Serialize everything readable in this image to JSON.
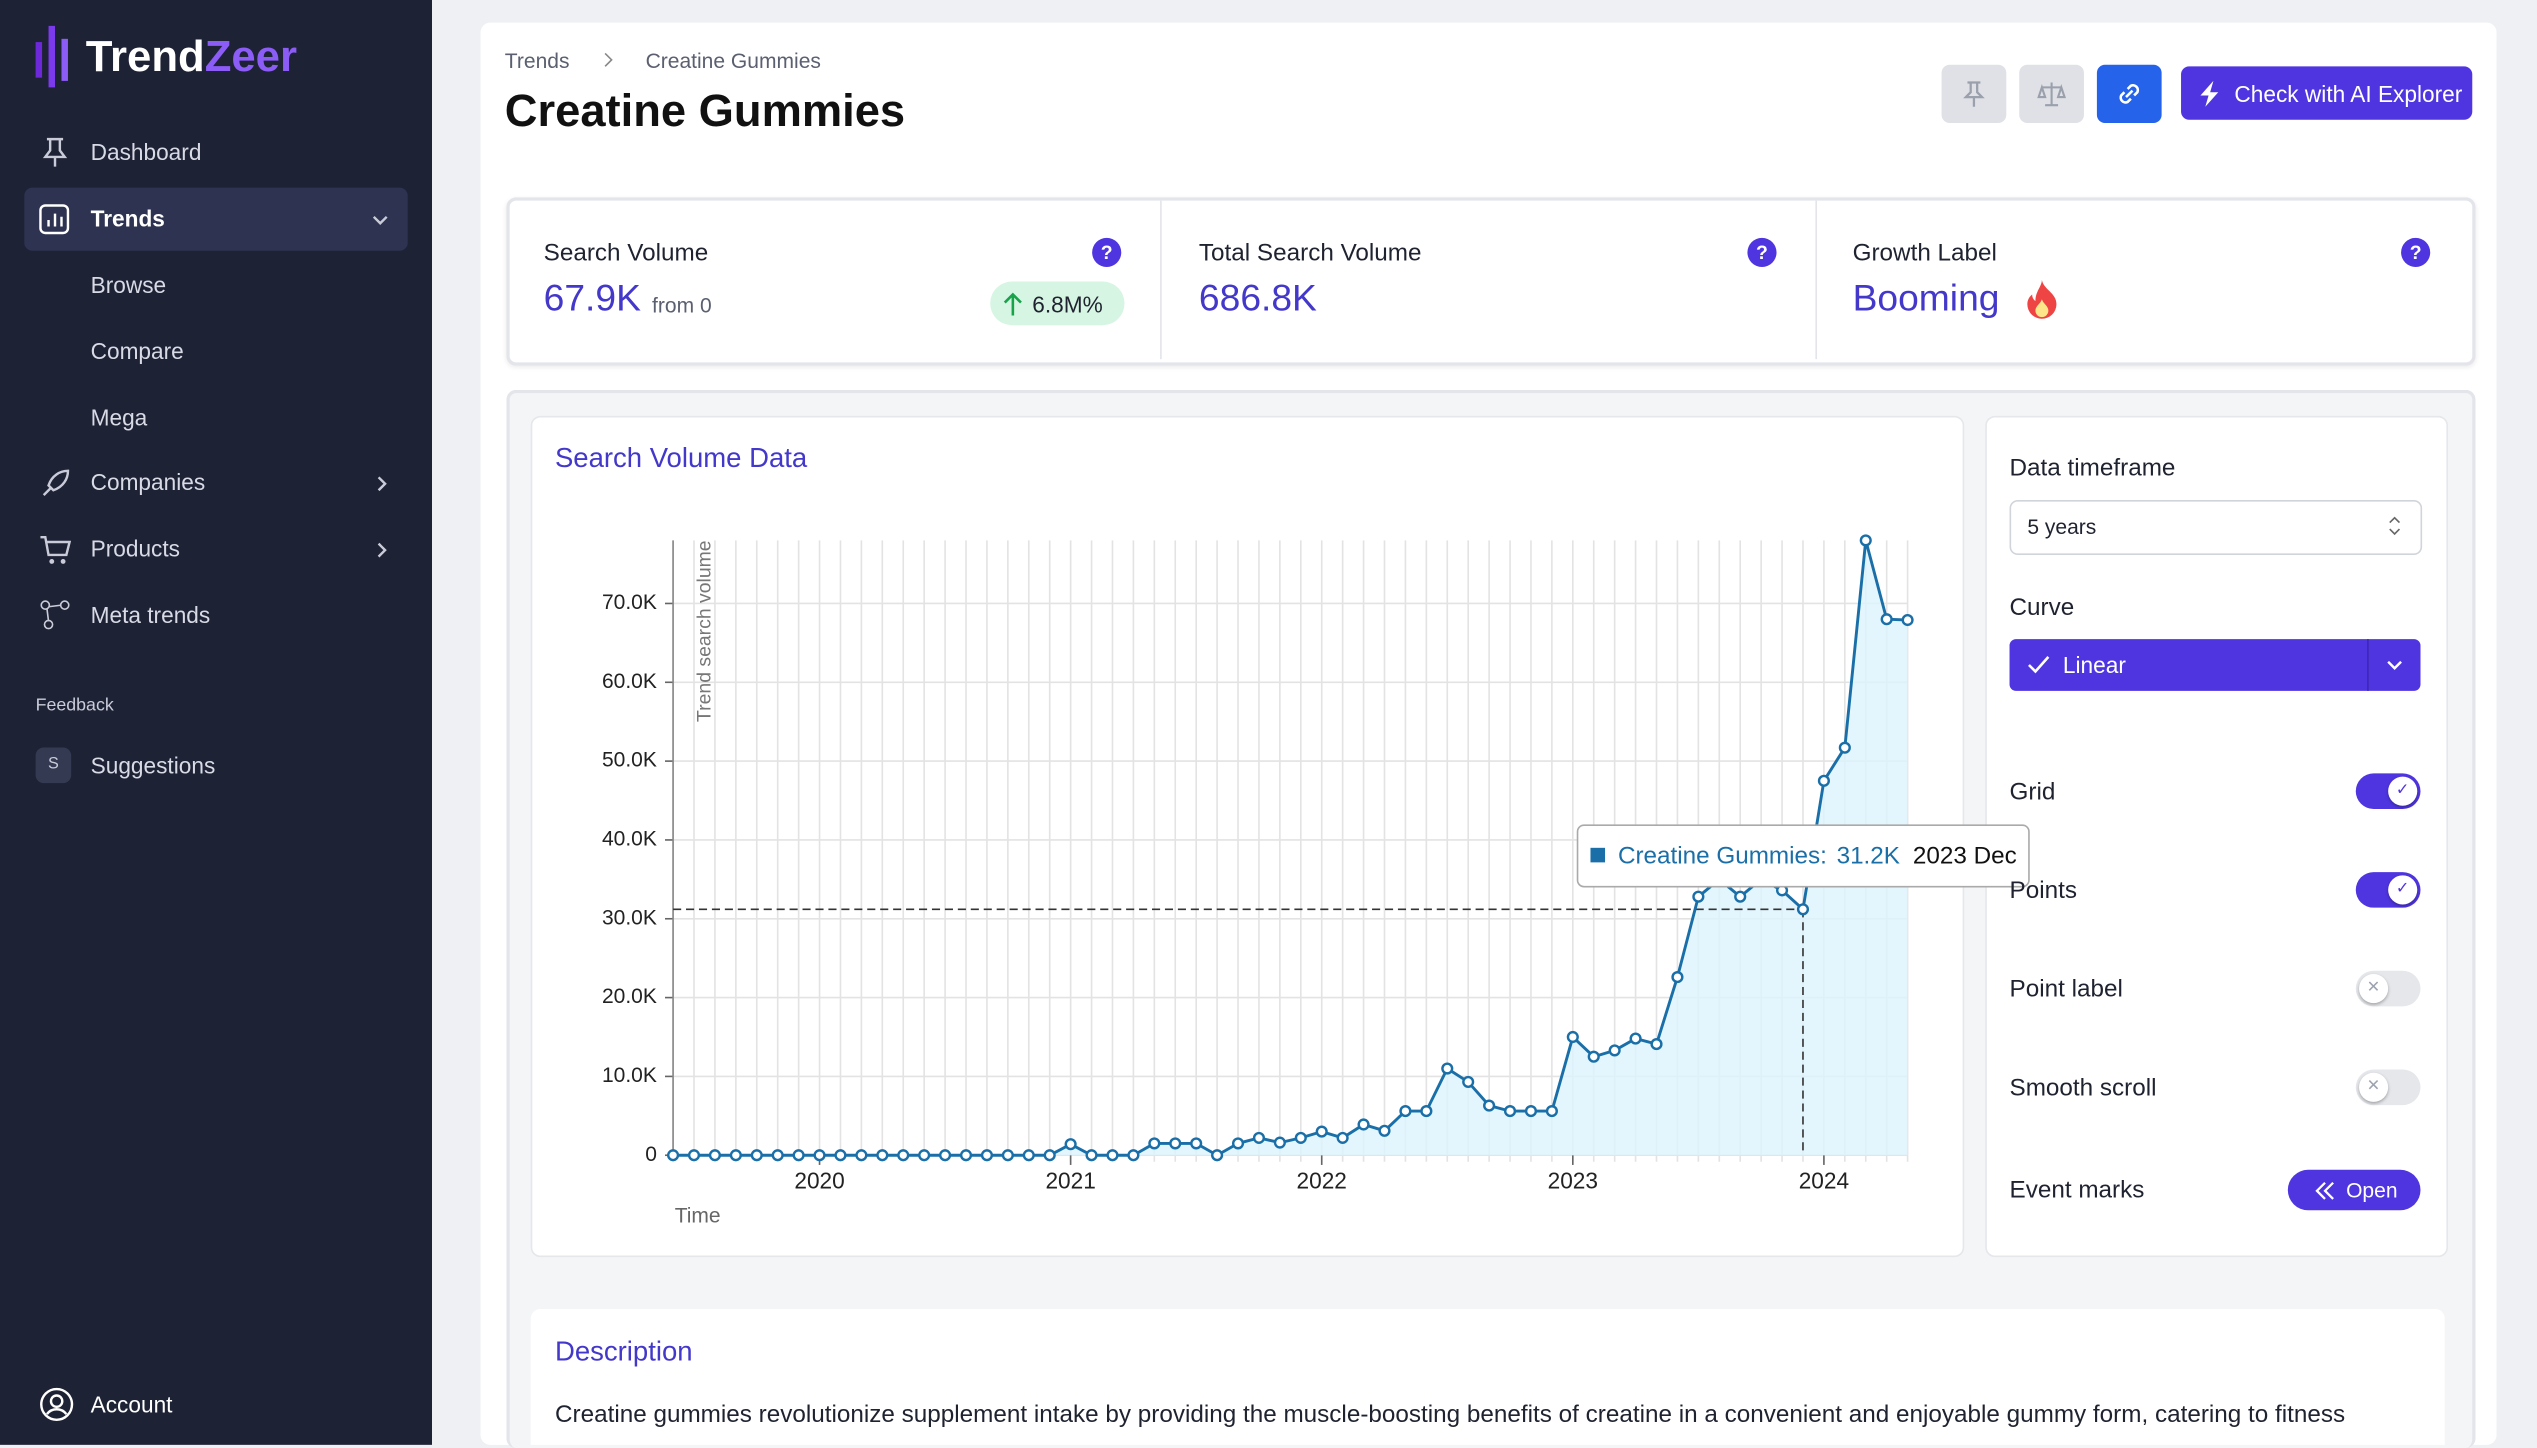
{
  "logo": {
    "part1": "Trend",
    "part2": "Zeer"
  },
  "nav": {
    "dashboard": "Dashboard",
    "trends": "Trends",
    "browse": "Browse",
    "compare": "Compare",
    "mega": "Mega",
    "companies": "Companies",
    "products": "Products",
    "meta_trends": "Meta trends",
    "feedback": "Feedback",
    "suggestions_badge": "S",
    "suggestions": "Suggestions",
    "account": "Account"
  },
  "breadcrumb": {
    "root": "Trends",
    "current": "Creatine Gummies"
  },
  "header": {
    "title": "Creatine Gummies",
    "ai_button": "Check with AI Explorer"
  },
  "stats": [
    {
      "label": "Search Volume",
      "value": "67.9K",
      "sub": "from 0",
      "badge": "6.8M%"
    },
    {
      "label": "Total Search Volume",
      "value": "686.8K"
    },
    {
      "label": "Growth Label",
      "value": "Booming"
    }
  ],
  "chart_data": {
    "type": "line",
    "title": "Search Volume Data",
    "y_label": "Trend search volume",
    "x_label": "Time",
    "color": "#1a6fa8",
    "area_color": "#dcf3fc",
    "grid": true,
    "points": true,
    "categories": [
      "2019 Jun",
      "2019 Jul",
      "2019 Aug",
      "2019 Sep",
      "2019 Oct",
      "2019 Nov",
      "2019 Dec",
      "2020 Jan",
      "2020 Feb",
      "2020 Mar",
      "2020 Apr",
      "2020 May",
      "2020 Jun",
      "2020 Jul",
      "2020 Aug",
      "2020 Sep",
      "2020 Oct",
      "2020 Nov",
      "2020 Dec",
      "2021 Jan",
      "2021 Feb",
      "2021 Mar",
      "2021 Apr",
      "2021 May",
      "2021 Jun",
      "2021 Jul",
      "2021 Aug",
      "2021 Sep",
      "2021 Oct",
      "2021 Nov",
      "2021 Dec",
      "2022 Jan",
      "2022 Feb",
      "2022 Mar",
      "2022 Apr",
      "2022 May",
      "2022 Jun",
      "2022 Jul",
      "2022 Aug",
      "2022 Sep",
      "2022 Oct",
      "2022 Nov",
      "2022 Dec",
      "2023 Jan",
      "2023 Feb",
      "2023 Mar",
      "2023 Apr",
      "2023 May",
      "2023 Jun",
      "2023 Jul",
      "2023 Aug",
      "2023 Sep",
      "2023 Oct",
      "2023 Nov",
      "2023 Dec",
      "2024 Jan",
      "2024 Feb",
      "2024 Mar",
      "2024 Apr",
      "2024 May"
    ],
    "values": [
      0,
      0,
      0,
      0,
      0,
      0,
      0,
      0,
      0,
      0,
      0,
      0,
      0,
      0,
      0,
      0,
      0,
      0,
      0,
      1400,
      0,
      0,
      0,
      1500,
      1500,
      1500,
      0,
      1500,
      2200,
      1600,
      2200,
      3000,
      2200,
      3900,
      3100,
      5600,
      5600,
      11000,
      9300,
      6300,
      5600,
      5600,
      5600,
      15000,
      12500,
      13300,
      14800,
      14100,
      22600,
      32800,
      35000,
      32800,
      35000,
      33600,
      31200,
      47500,
      51700,
      78000,
      68000,
      67900
    ],
    "ylim": [
      0,
      78000
    ],
    "yticks": [
      0,
      {
        "value": 10000,
        "label": "10.0K"
      },
      {
        "value": 20000,
        "label": "20.0K"
      },
      {
        "value": 30000,
        "label": "30.0K"
      },
      {
        "value": 40000,
        "label": "40.0K"
      },
      {
        "value": 50000,
        "label": "50.0K"
      },
      {
        "value": 60000,
        "label": "60.0K"
      },
      {
        "value": 70000,
        "label": "70.0K"
      }
    ],
    "xticks": [
      {
        "value": "2020 Jan",
        "label": "2020"
      },
      {
        "value": "2021 Jan",
        "label": "2021"
      },
      {
        "value": "2022 Jan",
        "label": "2022"
      },
      {
        "value": "2023 Jan",
        "label": "2023"
      },
      {
        "value": "2024 Jan",
        "label": "2024"
      }
    ],
    "tooltip": {
      "name": "Creatine Gummies:",
      "value_label": "31.2K",
      "date": "2023 Dec"
    }
  },
  "controls": {
    "timeframe_label": "Data timeframe",
    "timeframe": "5 years",
    "curve_label": "Curve",
    "curve": "Linear",
    "toggles": [
      {
        "label": "Grid",
        "on": true
      },
      {
        "label": "Points",
        "on": true
      },
      {
        "label": "Point label",
        "on": false
      },
      {
        "label": "Smooth scroll",
        "on": false
      }
    ],
    "event_marks": "Event marks",
    "open": "Open"
  },
  "description": {
    "title": "Description",
    "text": "Creatine gummies revolutionize supplement intake by providing the muscle-boosting benefits of creatine in a convenient and enjoyable gummy form, catering to fitness"
  }
}
